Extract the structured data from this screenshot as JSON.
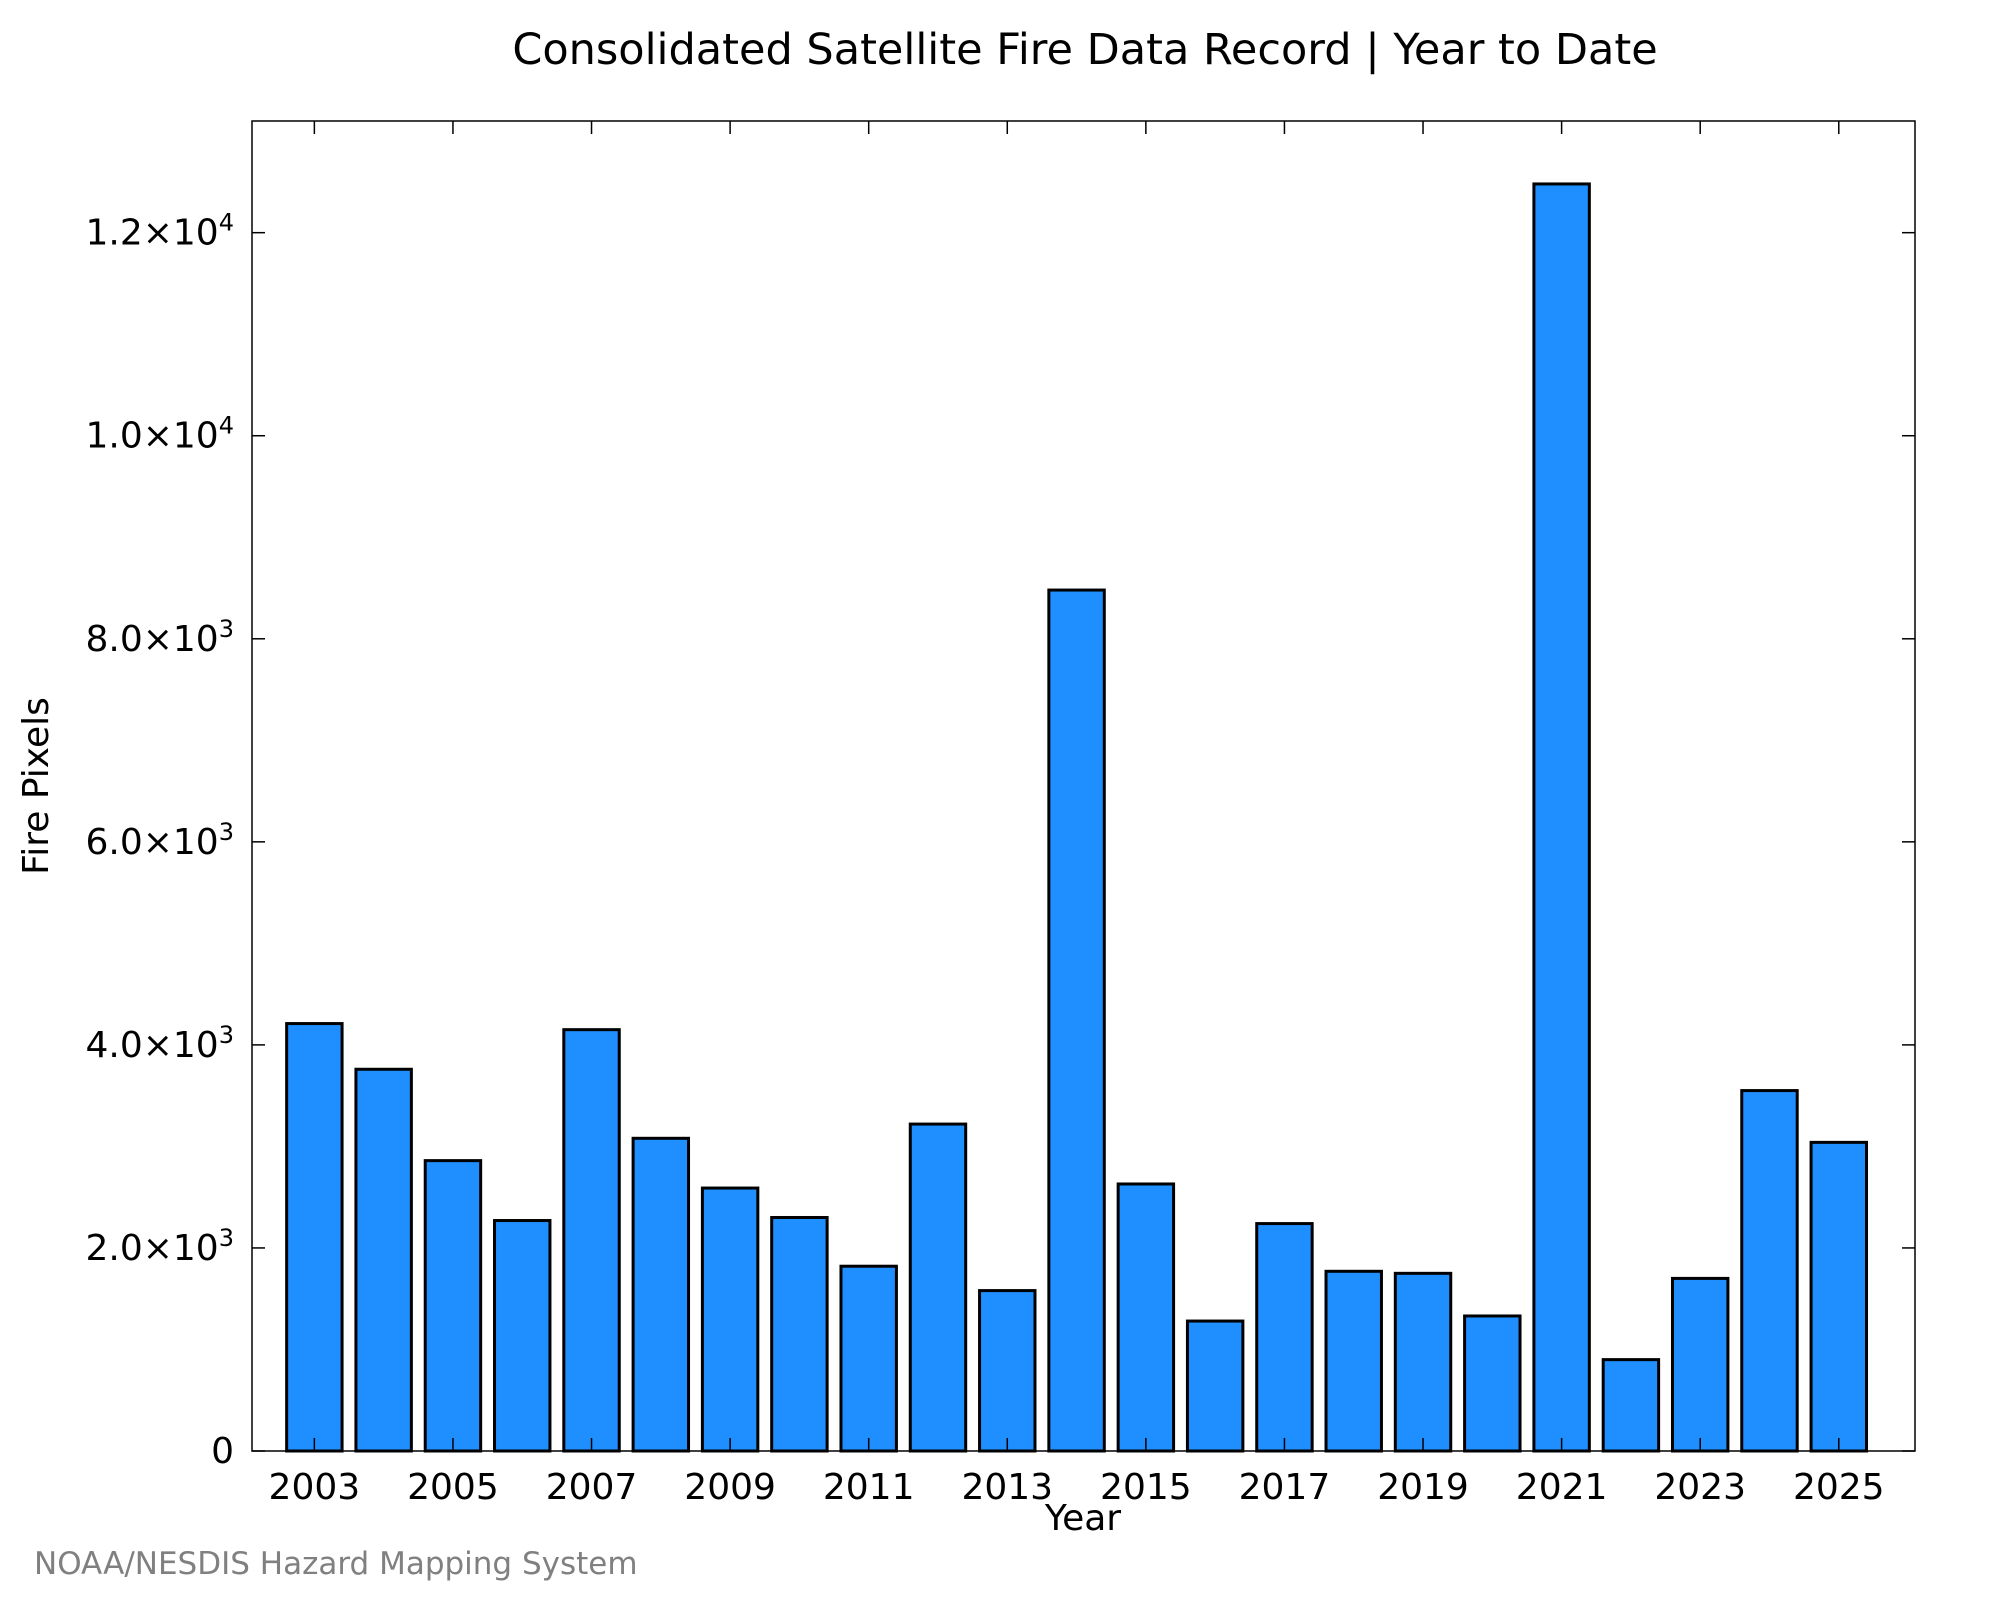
{
  "chart_data": {
    "type": "bar",
    "title": "Consolidated Satellite Fire Data Record | Year to Date",
    "xlabel": "Year",
    "ylabel": "Fire Pixels",
    "credit": "NOAA/NESDIS Hazard Mapping System",
    "bar_color": "#1f8fff",
    "bar_edge_color": "#000000",
    "categories": [
      "2003",
      "2004",
      "2005",
      "2006",
      "2007",
      "2008",
      "2009",
      "2010",
      "2011",
      "2012",
      "2013",
      "2014",
      "2015",
      "2016",
      "2017",
      "2018",
      "2019",
      "2020",
      "2021",
      "2022",
      "2023",
      "2024",
      "2025"
    ],
    "values": [
      4210,
      3760,
      2860,
      2270,
      4150,
      3080,
      2590,
      2300,
      1820,
      3220,
      1580,
      8480,
      2630,
      1280,
      2240,
      1770,
      1750,
      1330,
      12480,
      900,
      1700,
      3550,
      3040
    ],
    "xlim": [
      2002.1,
      2026.1
    ],
    "ylim": [
      0,
      13100
    ],
    "x_ticks": [
      2003,
      2005,
      2007,
      2009,
      2011,
      2013,
      2015,
      2017,
      2019,
      2021,
      2023,
      2025
    ],
    "y_ticks": [
      {
        "value": 0,
        "mantissa": "0",
        "exp": ""
      },
      {
        "value": 2000,
        "mantissa": "2.0×10",
        "exp": "3"
      },
      {
        "value": 4000,
        "mantissa": "4.0×10",
        "exp": "3"
      },
      {
        "value": 6000,
        "mantissa": "6.0×10",
        "exp": "3"
      },
      {
        "value": 8000,
        "mantissa": "8.0×10",
        "exp": "3"
      },
      {
        "value": 10000,
        "mantissa": "1.0×10",
        "exp": "4"
      },
      {
        "value": 12000,
        "mantissa": "1.2×10",
        "exp": "4"
      }
    ],
    "grid": false,
    "legend": "none"
  }
}
